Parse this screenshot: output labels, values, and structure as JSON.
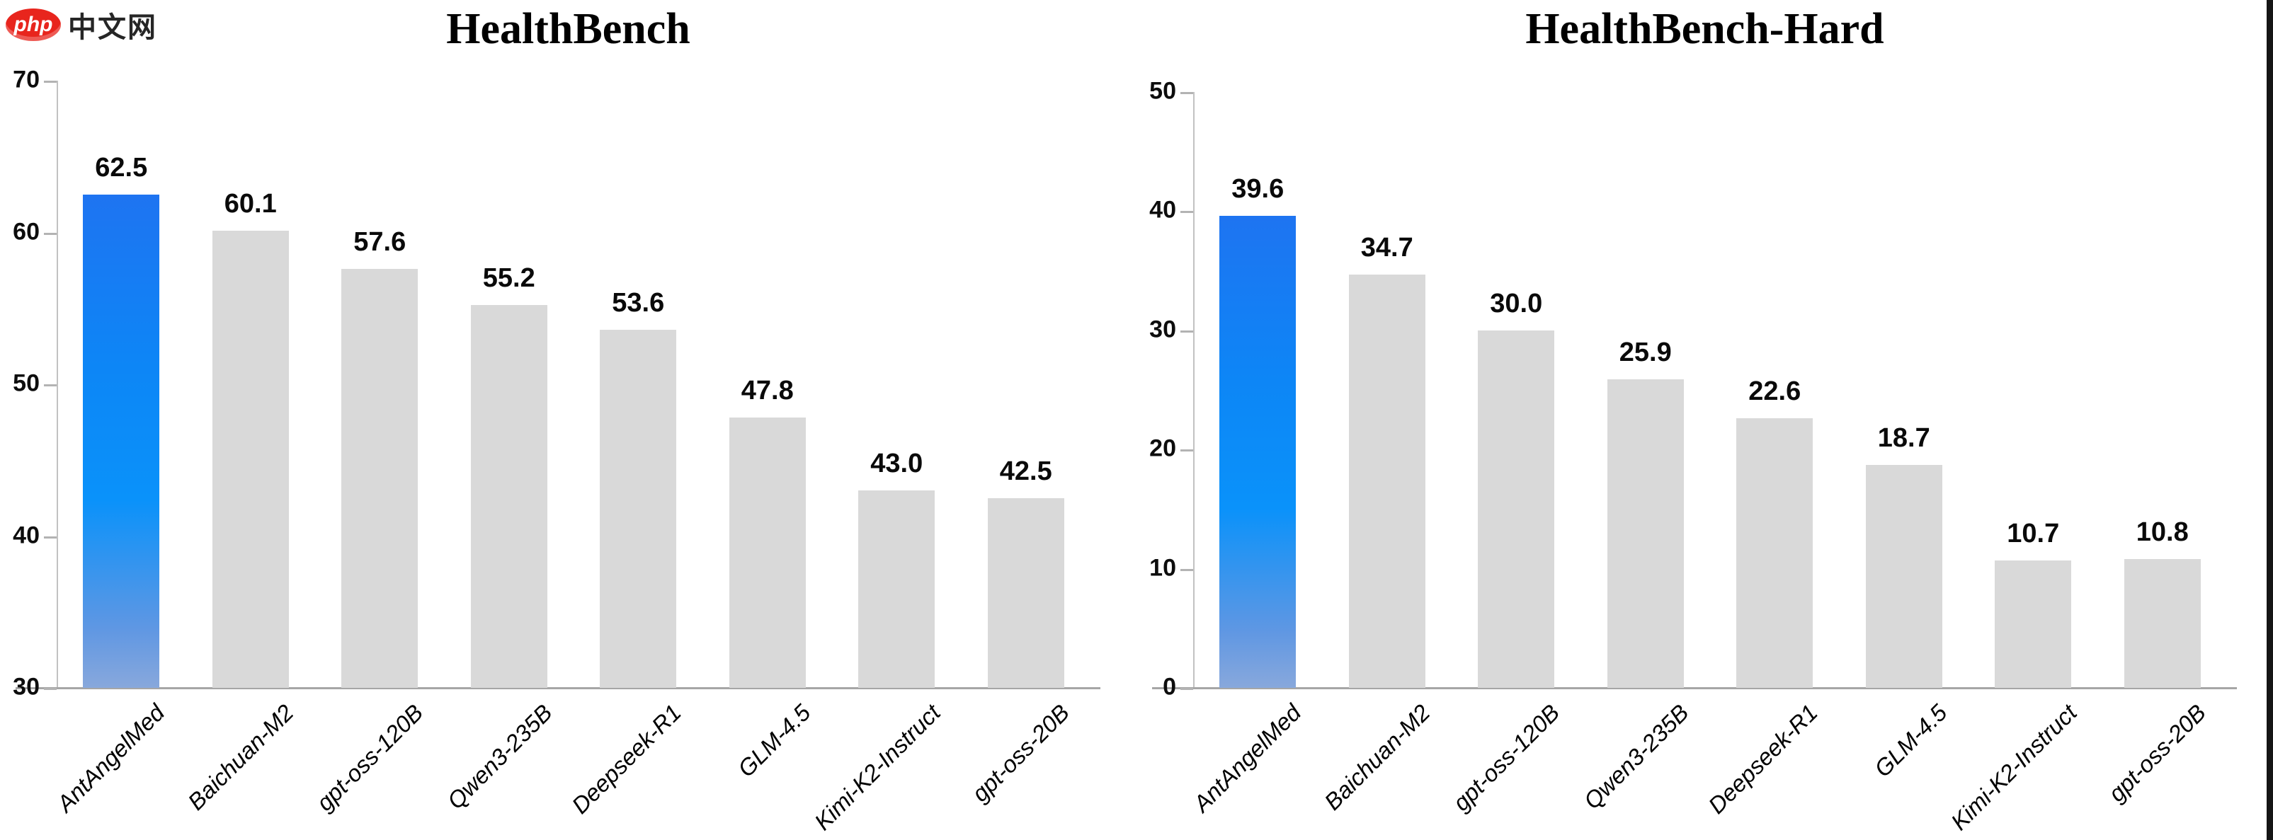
{
  "watermark": {
    "badge": "php",
    "text": "中文网"
  },
  "colors": {
    "logo_red": "#e8251d",
    "highlight_top": "#1e74f1",
    "highlight_mid": "#0a92fa",
    "highlight_bottom": "#88a8dc",
    "bar_gray": "#d9d9d9",
    "axis_line": "#a6a6a6"
  },
  "chart_data": [
    {
      "type": "bar",
      "title": "HealthBench",
      "categories": [
        "AntAngelMed",
        "Baichuan-M2",
        "gpt-oss-120B",
        "Qwen3-235B",
        "Deepseek-R1",
        "GLM-4.5",
        "Kimi-K2-Instruct",
        "gpt-oss-20B"
      ],
      "values": [
        62.5,
        60.1,
        57.6,
        55.2,
        53.6,
        47.8,
        43.0,
        42.5
      ],
      "value_labels": [
        "62.5",
        "60.1",
        "57.6",
        "55.2",
        "53.6",
        "47.8",
        "43.0",
        "42.5"
      ],
      "ylim": [
        30,
        70
      ],
      "yticks": [
        30,
        40,
        50,
        60,
        70
      ],
      "xlabel": "",
      "ylabel": "",
      "grid": false,
      "legend_position": "none",
      "highlight_index": 0
    },
    {
      "type": "bar",
      "title": "HealthBench-Hard",
      "categories": [
        "AntAngelMed",
        "Baichuan-M2",
        "gpt-oss-120B",
        "Qwen3-235B",
        "Deepseek-R1",
        "GLM-4.5",
        "Kimi-K2-Instruct",
        "gpt-oss-20B"
      ],
      "values": [
        39.6,
        34.7,
        30.0,
        25.9,
        22.6,
        18.7,
        10.7,
        10.8
      ],
      "value_labels": [
        "39.6",
        "34.7",
        "30.0",
        "25.9",
        "22.6",
        "18.7",
        "10.7",
        "10.8"
      ],
      "ylim": [
        0,
        50
      ],
      "yticks": [
        0,
        10,
        20,
        30,
        40,
        50
      ],
      "xlabel": "",
      "ylabel": "",
      "grid": false,
      "legend_position": "none",
      "highlight_index": 0
    }
  ]
}
